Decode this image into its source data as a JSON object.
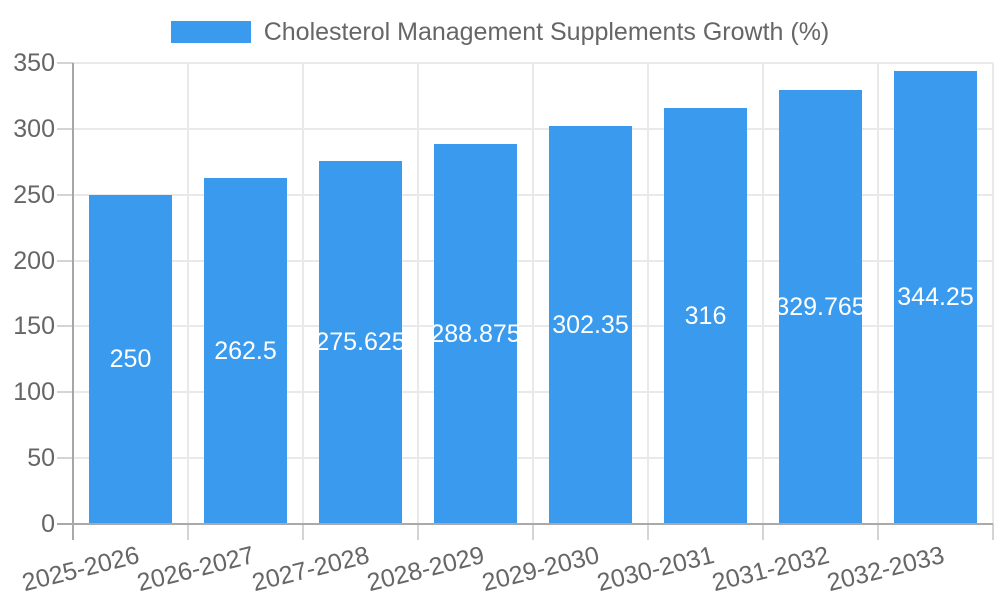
{
  "legend": {
    "label": "Cholesterol Management Supplements Growth (%)"
  },
  "chart_data": {
    "type": "bar",
    "title": "Cholesterol Management Supplements Growth (%)",
    "categories": [
      "2025-2026",
      "2026-2027",
      "2027-2028",
      "2028-2029",
      "2029-2030",
      "2030-2031",
      "2031-2032",
      "2032-2033"
    ],
    "values": [
      250,
      262.5,
      275.625,
      288.875,
      302.35,
      316,
      329.765,
      344.25
    ],
    "value_labels": [
      "250",
      "262.5",
      "275.625",
      "288.875",
      "302.35",
      "316",
      "329.765",
      "344.25"
    ],
    "xlabel": "",
    "ylabel": "",
    "ylim": [
      0,
      350
    ],
    "yticks": [
      0,
      50,
      100,
      150,
      200,
      250,
      300,
      350
    ],
    "grid": true,
    "legend_position": "top",
    "bar_label_position": "center",
    "colors": {
      "bar": "#3A9AED",
      "bar_label": "#FFFFFF",
      "grid": "#E9E9E9",
      "axis": "#A6A6A6",
      "tick_text": "#666666",
      "background": "#FFFFFF"
    }
  }
}
